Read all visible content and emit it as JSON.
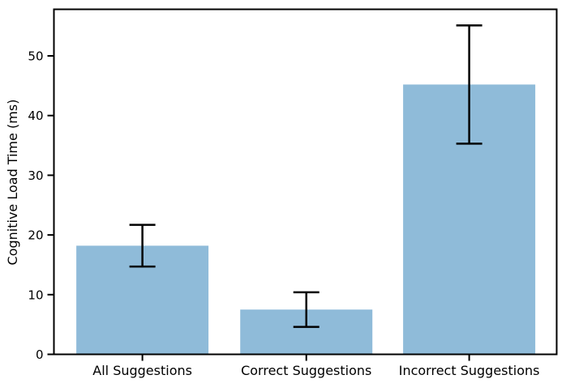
{
  "chart_data": {
    "type": "bar",
    "title": "",
    "xlabel": "",
    "ylabel": "Cognitive Load Time (ms)",
    "categories": [
      "All Suggestions",
      "Correct Suggestions",
      "Incorrect Suggestions"
    ],
    "values": [
      18.2,
      7.5,
      45.2
    ],
    "errors": [
      3.5,
      2.9,
      9.9
    ],
    "error_bar_low": [
      14.7,
      4.6,
      35.3
    ],
    "error_bar_high": [
      21.7,
      10.4,
      55.1
    ],
    "ylim": [
      0,
      57.8
    ],
    "yticks": [
      0,
      10,
      20,
      30,
      40,
      50
    ],
    "bar_color": "#8fbbd9",
    "error_color": "#000000",
    "axis_color": "#000000",
    "background_color": "#ffffff",
    "grid": false,
    "legend": null
  }
}
